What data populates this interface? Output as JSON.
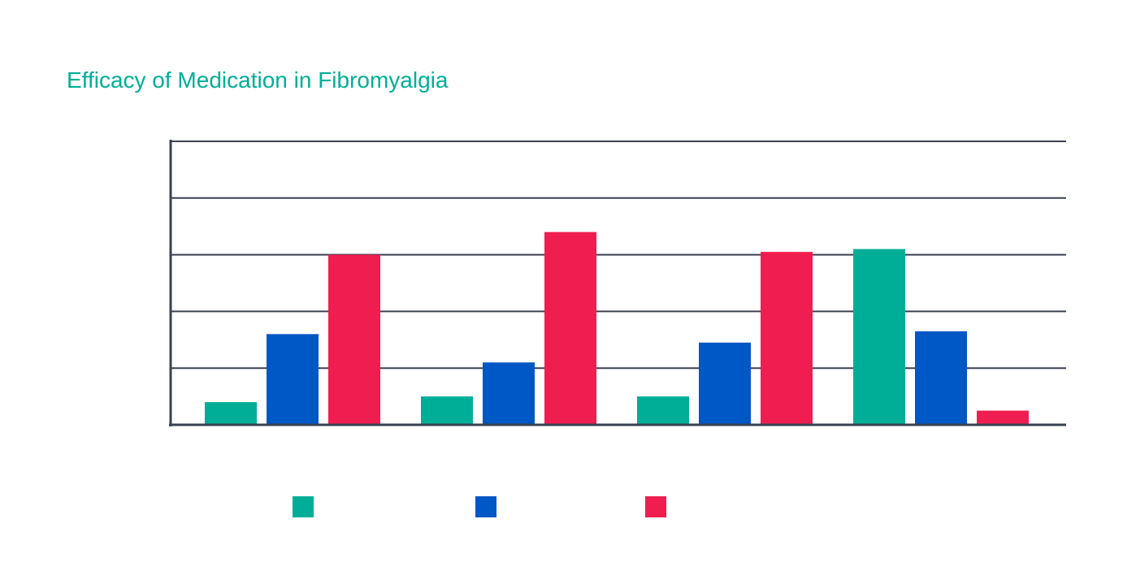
{
  "colors": {
    "title": "#00AE98",
    "axis": "#3A4150",
    "series": [
      "#00AE98",
      "#0057C6",
      "#F01E50"
    ]
  },
  "chart_data": {
    "type": "bar",
    "title": "Efficacy of Medication in Fibromyalgia",
    "xlabel": "",
    "ylabel": "",
    "categories": [
      "",
      "",
      "",
      ""
    ],
    "series": [
      {
        "values": [
          0.4,
          0.5,
          0.5,
          3.1
        ]
      },
      {
        "values": [
          1.6,
          1.1,
          1.45,
          1.65
        ]
      },
      {
        "values": [
          3.0,
          3.4,
          3.05,
          0.25
        ]
      }
    ],
    "ylim": [
      0,
      5
    ],
    "y_ticks": [
      0,
      1,
      2,
      3,
      4,
      5
    ],
    "grid": true,
    "legend": "bottom-left",
    "legend_labels": [
      "",
      "",
      ""
    ]
  }
}
